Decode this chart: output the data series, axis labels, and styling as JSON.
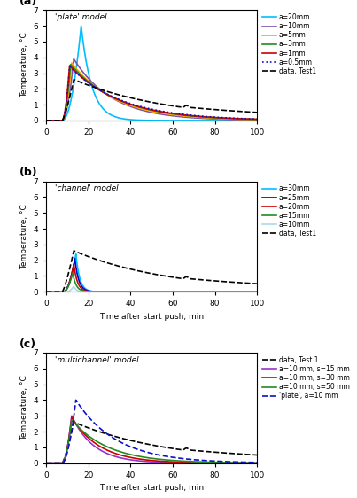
{
  "title_a": "'plate' model",
  "title_b": "'channel' model",
  "title_c": "'multichannel' model",
  "xlabel": "Time after start push, min",
  "ylabel": "Temperature, °C",
  "xlim": [
    0,
    100
  ],
  "ylim": [
    0,
    7
  ],
  "xticks": [
    0,
    20,
    40,
    60,
    80,
    100
  ],
  "yticks": [
    0,
    1,
    2,
    3,
    4,
    5,
    6,
    7
  ],
  "panel_labels": [
    "(a)",
    "(b)",
    "(c)"
  ],
  "plate_colors": {
    "a20": "#00bfff",
    "a10": "#7b52ab",
    "a5": "#ffa500",
    "a3": "#228b22",
    "a1": "#cc0000",
    "a05": "#1010cc",
    "data": "#000000"
  },
  "channel_colors": {
    "a30": "#00bfff",
    "a25": "#0000cc",
    "a20": "#cc0000",
    "a15": "#228b22",
    "a10": "#add8e6",
    "data": "#000000"
  },
  "multi_colors": {
    "data": "#000000",
    "s15": "#9932cc",
    "s30": "#cc0000",
    "s50": "#228b22",
    "plate": "#1010cc"
  }
}
